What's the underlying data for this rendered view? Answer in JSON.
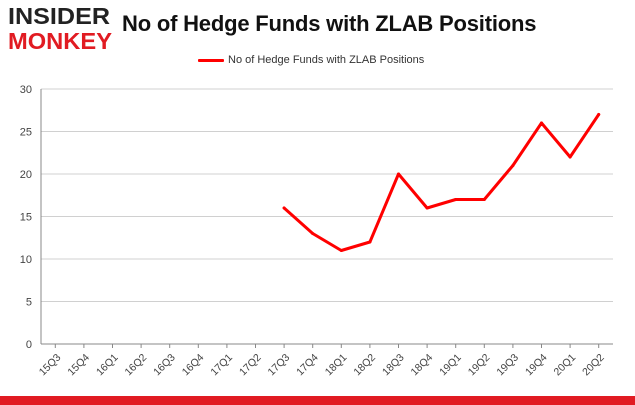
{
  "logo": {
    "line1": "INSIDER",
    "line2": "MONKEY"
  },
  "colors": {
    "series": "#ff0000",
    "logo_dark": "#222222",
    "logo_red": "#e11b22",
    "bottom_bar": "#e11b22",
    "grid": "#d0d0d0"
  },
  "chart_data": {
    "type": "line",
    "title": "No of Hedge Funds with ZLAB Positions",
    "xlabel": "",
    "ylabel": "",
    "categories": [
      "15Q3",
      "15Q4",
      "16Q1",
      "16Q2",
      "16Q3",
      "16Q4",
      "17Q1",
      "17Q2",
      "17Q3",
      "17Q4",
      "18Q1",
      "18Q2",
      "18Q3",
      "18Q4",
      "19Q1",
      "19Q2",
      "19Q3",
      "19Q4",
      "20Q1",
      "20Q2"
    ],
    "series": [
      {
        "name": "No of Hedge Funds with ZLAB Positions",
        "values": [
          null,
          null,
          null,
          null,
          null,
          null,
          null,
          null,
          16,
          13,
          11,
          12,
          20,
          16,
          17,
          17,
          21,
          26,
          22,
          27
        ]
      }
    ],
    "ylim": [
      0,
      30
    ],
    "yticks": [
      0,
      5,
      10,
      15,
      20,
      25,
      30
    ],
    "grid": true,
    "legend": "top-center"
  }
}
